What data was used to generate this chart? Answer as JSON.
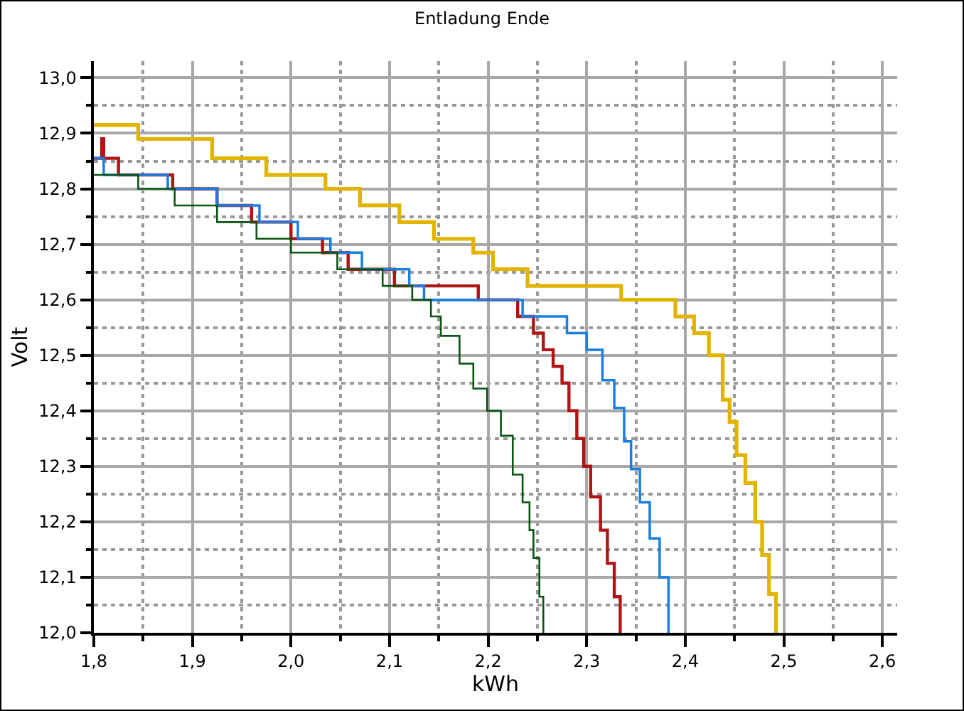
{
  "chart_data": {
    "type": "step",
    "title": "Entladung Ende",
    "xlabel": "kWh",
    "ylabel": "Volt",
    "xlim": [
      1.8,
      2.615
    ],
    "ylim": [
      12.0,
      13.03
    ],
    "xticks": [
      {
        "value": 1.8,
        "label": "1,8"
      },
      {
        "value": 1.85,
        "label": null
      },
      {
        "value": 1.9,
        "label": "1,9"
      },
      {
        "value": 1.95,
        "label": null
      },
      {
        "value": 2.0,
        "label": "2,0"
      },
      {
        "value": 2.05,
        "label": null
      },
      {
        "value": 2.1,
        "label": "2,1"
      },
      {
        "value": 2.15,
        "label": null
      },
      {
        "value": 2.2,
        "label": "2,2"
      },
      {
        "value": 2.25,
        "label": null
      },
      {
        "value": 2.3,
        "label": "2,3"
      },
      {
        "value": 2.35,
        "label": null
      },
      {
        "value": 2.4,
        "label": "2,4"
      },
      {
        "value": 2.45,
        "label": null
      },
      {
        "value": 2.5,
        "label": "2,5"
      },
      {
        "value": 2.55,
        "label": null
      },
      {
        "value": 2.6,
        "label": "2,6"
      }
    ],
    "yticks": [
      {
        "value": 12.0,
        "label": "12,0"
      },
      {
        "value": 12.05,
        "label": null
      },
      {
        "value": 12.1,
        "label": "12,1"
      },
      {
        "value": 12.15,
        "label": null
      },
      {
        "value": 12.2,
        "label": "12,2"
      },
      {
        "value": 12.25,
        "label": null
      },
      {
        "value": 12.3,
        "label": "12,3"
      },
      {
        "value": 12.35,
        "label": null
      },
      {
        "value": 12.4,
        "label": "12,4"
      },
      {
        "value": 12.45,
        "label": null
      },
      {
        "value": 12.5,
        "label": "12,5"
      },
      {
        "value": 12.55,
        "label": null
      },
      {
        "value": 12.6,
        "label": "12,6"
      },
      {
        "value": 12.65,
        "label": null
      },
      {
        "value": 12.7,
        "label": "12,7"
      },
      {
        "value": 12.75,
        "label": null
      },
      {
        "value": 12.8,
        "label": "12,8"
      },
      {
        "value": 12.85,
        "label": null
      },
      {
        "value": 12.9,
        "label": "12,9"
      },
      {
        "value": 12.95,
        "label": null
      },
      {
        "value": 13.0,
        "label": "13,0"
      }
    ],
    "grid": true,
    "marker": "none",
    "line_style": "solid",
    "series": [
      {
        "color": "#e0b400",
        "x": [
          1.8,
          1.845,
          1.92,
          1.975,
          2.035,
          2.07,
          2.11,
          2.145,
          2.185,
          2.205,
          2.24,
          2.335,
          2.39,
          2.409,
          2.424,
          2.438,
          2.445,
          2.452,
          2.461,
          2.471,
          2.478,
          2.485,
          2.492
        ],
        "values": [
          12.915,
          12.89,
          12.855,
          12.825,
          12.8,
          12.77,
          12.74,
          12.71,
          12.685,
          12.655,
          12.625,
          12.6,
          12.57,
          12.54,
          12.5,
          12.42,
          12.38,
          12.32,
          12.27,
          12.2,
          12.14,
          12.07,
          12.0
        ]
      },
      {
        "color": "#b01414",
        "x": [
          1.8,
          1.808,
          1.81,
          1.825,
          1.88,
          1.925,
          1.96,
          2.0,
          2.032,
          2.058,
          2.105,
          2.19,
          2.23,
          2.246,
          2.256,
          2.266,
          2.275,
          2.282,
          2.29,
          2.297,
          2.304,
          2.314,
          2.321,
          2.328,
          2.334
        ],
        "values": [
          12.855,
          12.89,
          12.855,
          12.825,
          12.8,
          12.77,
          12.74,
          12.71,
          12.685,
          12.655,
          12.625,
          12.6,
          12.57,
          12.54,
          12.51,
          12.48,
          12.45,
          12.4,
          12.35,
          12.3,
          12.245,
          12.185,
          12.125,
          12.065,
          12.0
        ]
      },
      {
        "color": "#1a7fe0",
        "x": [
          1.8,
          1.81,
          1.875,
          1.925,
          1.968,
          2.007,
          2.04,
          2.072,
          2.12,
          2.135,
          2.235,
          2.28,
          2.3,
          2.316,
          2.328,
          2.338,
          2.345,
          2.354,
          2.364,
          2.374,
          2.383
        ],
        "values": [
          12.855,
          12.825,
          12.8,
          12.77,
          12.74,
          12.71,
          12.685,
          12.655,
          12.625,
          12.6,
          12.57,
          12.54,
          12.51,
          12.455,
          12.405,
          12.345,
          12.295,
          12.235,
          12.17,
          12.1,
          12.0
        ]
      },
      {
        "color": "#0a5414",
        "x": [
          1.8,
          1.845,
          1.882,
          1.925,
          1.965,
          2.0,
          2.047,
          2.093,
          2.123,
          2.142,
          2.152,
          2.171,
          2.185,
          2.199,
          2.213,
          2.225,
          2.235,
          2.242,
          2.246,
          2.252,
          2.256
        ],
        "values": [
          12.825,
          12.8,
          12.77,
          12.74,
          12.71,
          12.685,
          12.655,
          12.625,
          12.6,
          12.57,
          12.535,
          12.485,
          12.44,
          12.4,
          12.355,
          12.285,
          12.235,
          12.185,
          12.135,
          12.065,
          12.0
        ]
      }
    ]
  }
}
